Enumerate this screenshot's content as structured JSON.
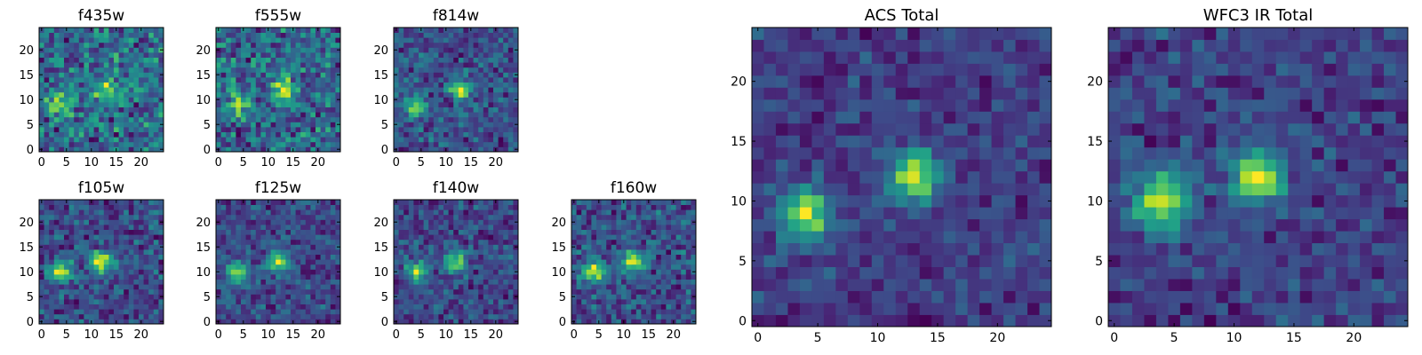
{
  "chart_data": [
    {
      "type": "heatmap",
      "title": "f435w",
      "size": 25,
      "xticks": [
        0,
        5,
        10,
        15,
        20
      ],
      "yticks": [
        0,
        5,
        10,
        15,
        20
      ],
      "colormap": "viridis",
      "value_range": [
        0,
        1
      ],
      "seed": 11,
      "noise": 0.75,
      "blob_strength": 0.4,
      "blobs": [
        [
          4,
          9
        ],
        [
          13,
          12
        ]
      ]
    },
    {
      "type": "heatmap",
      "title": "f555w",
      "size": 25,
      "xticks": [
        0,
        5,
        10,
        15,
        20
      ],
      "yticks": [
        0,
        5,
        10,
        15,
        20
      ],
      "colormap": "viridis",
      "value_range": [
        0,
        1
      ],
      "seed": 23,
      "noise": 0.75,
      "blob_strength": 0.55,
      "blobs": [
        [
          4,
          9
        ],
        [
          13,
          12
        ]
      ]
    },
    {
      "type": "heatmap",
      "title": "f814w",
      "size": 25,
      "xticks": [
        0,
        5,
        10,
        15,
        20
      ],
      "yticks": [
        0,
        5,
        10,
        15,
        20
      ],
      "colormap": "viridis",
      "value_range": [
        0,
        1
      ],
      "seed": 37,
      "noise": 0.7,
      "blob_strength": 0.8,
      "blobs": [
        [
          4,
          9
        ],
        [
          13,
          12
        ]
      ]
    },
    {
      "type": "heatmap",
      "title": "f105w",
      "size": 25,
      "xticks": [
        0,
        5,
        10,
        15,
        20
      ],
      "yticks": [
        0,
        5,
        10,
        15,
        20
      ],
      "colormap": "viridis",
      "value_range": [
        0,
        1
      ],
      "seed": 41,
      "noise": 0.6,
      "blob_strength": 0.8,
      "blobs": [
        [
          4,
          10
        ],
        [
          12,
          12
        ]
      ]
    },
    {
      "type": "heatmap",
      "title": "f125w",
      "size": 25,
      "xticks": [
        0,
        5,
        10,
        15,
        20
      ],
      "yticks": [
        0,
        5,
        10,
        15,
        20
      ],
      "colormap": "viridis",
      "value_range": [
        0,
        1
      ],
      "seed": 53,
      "noise": 0.6,
      "blob_strength": 0.8,
      "blobs": [
        [
          4,
          10
        ],
        [
          12,
          12
        ]
      ]
    },
    {
      "type": "heatmap",
      "title": "f140w",
      "size": 25,
      "xticks": [
        0,
        5,
        10,
        15,
        20
      ],
      "yticks": [
        0,
        5,
        10,
        15,
        20
      ],
      "colormap": "viridis",
      "value_range": [
        0,
        1
      ],
      "seed": 67,
      "noise": 0.6,
      "blob_strength": 0.8,
      "blobs": [
        [
          4,
          10
        ],
        [
          12,
          12
        ]
      ]
    },
    {
      "type": "heatmap",
      "title": "f160w",
      "size": 25,
      "xticks": [
        0,
        5,
        10,
        15,
        20
      ],
      "yticks": [
        0,
        5,
        10,
        15,
        20
      ],
      "colormap": "viridis",
      "value_range": [
        0,
        1
      ],
      "seed": 79,
      "noise": 0.6,
      "blob_strength": 0.8,
      "blobs": [
        [
          4,
          10
        ],
        [
          12,
          12
        ]
      ]
    },
    {
      "type": "heatmap",
      "title": "ACS Total",
      "size": 25,
      "xticks": [
        0,
        5,
        10,
        15,
        20
      ],
      "yticks": [
        0,
        5,
        10,
        15,
        20
      ],
      "colormap": "viridis",
      "value_range": [
        0,
        1
      ],
      "seed": 97,
      "noise": 0.5,
      "blob_strength": 1.0,
      "blobs": [
        [
          4,
          9
        ],
        [
          13,
          12
        ]
      ]
    },
    {
      "type": "heatmap",
      "title": "WFC3 IR Total",
      "size": 25,
      "xticks": [
        0,
        5,
        10,
        15,
        20
      ],
      "yticks": [
        0,
        5,
        10,
        15,
        20
      ],
      "colormap": "viridis",
      "value_range": [
        0,
        1
      ],
      "seed": 113,
      "noise": 0.5,
      "blob_strength": 1.0,
      "blobs": [
        [
          4,
          10
        ],
        [
          12,
          12
        ]
      ]
    }
  ]
}
